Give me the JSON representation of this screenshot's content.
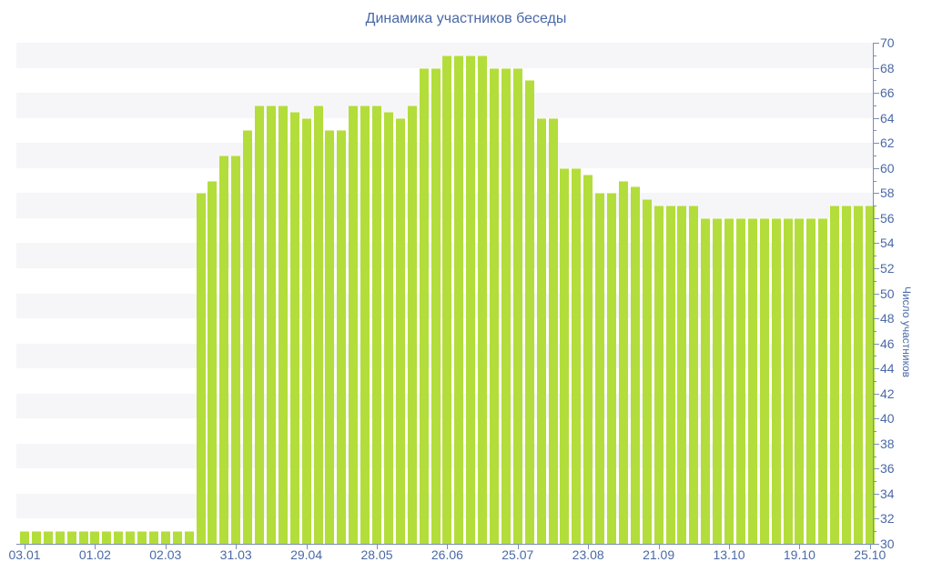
{
  "chart_data": {
    "type": "bar",
    "title": "Динамика участников беседы",
    "ylabel": "Число участников",
    "xlabel": "",
    "legend": "none",
    "grid": "alternating horizontal bands every 2 units",
    "ylim": [
      30,
      70
    ],
    "y_major_step": 2,
    "y_minor_step": 1,
    "y_tick_labels": [
      "30",
      "32",
      "34",
      "36",
      "38",
      "40",
      "42",
      "44",
      "46",
      "48",
      "50",
      "52",
      "54",
      "56",
      "58",
      "60",
      "62",
      "64",
      "66",
      "68",
      "70"
    ],
    "x_tick_labels": [
      "03.01",
      "01.02",
      "02.03",
      "31.03",
      "29.04",
      "28.05",
      "26.06",
      "25.07",
      "23.08",
      "21.09",
      "13.10",
      "19.10",
      "25.10"
    ],
    "x_tick_bar_interval": 6,
    "bar_count": 73,
    "values": [
      31,
      31,
      31,
      31,
      31,
      31,
      31,
      31,
      31,
      31,
      31,
      31,
      31,
      31,
      31,
      58,
      59,
      61,
      61,
      63,
      65,
      65,
      65,
      64.5,
      64,
      65,
      63,
      63,
      65,
      65,
      65,
      64.5,
      64,
      65,
      68,
      68,
      69,
      69,
      69,
      69,
      68,
      68,
      68,
      67,
      64,
      64,
      60,
      60,
      59.5,
      58,
      58,
      59,
      58.5,
      57.5,
      57,
      57,
      57,
      57,
      56,
      56,
      56,
      56,
      56,
      56,
      56,
      56,
      56,
      56,
      56,
      57,
      57,
      57,
      57
    ],
    "colors": {
      "bar": "#b3dd3b",
      "bar_edge": "#d8ec95",
      "band": "#f6f6f8",
      "axis": "#7a8fb8",
      "text": "#4a69a7"
    }
  }
}
